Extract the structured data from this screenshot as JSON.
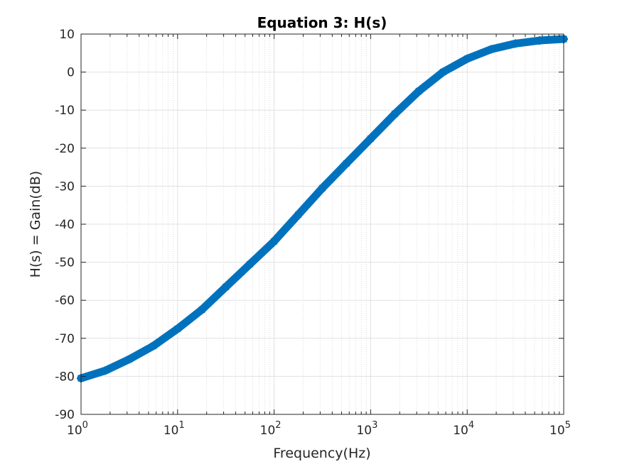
{
  "chart_data": {
    "type": "line",
    "title": "Equation 3: H(s)",
    "xlabel": "Frequency(Hz)",
    "ylabel": "H(s) = Gain(dB)",
    "xscale": "log",
    "xlim": [
      1,
      100000
    ],
    "ylim": [
      -90,
      10
    ],
    "grid": true,
    "minor_grid_x": true,
    "marker": "asterisk",
    "x_tick_labels": [
      {
        "base": "10",
        "exp": "0"
      },
      {
        "base": "10",
        "exp": "1"
      },
      {
        "base": "10",
        "exp": "2"
      },
      {
        "base": "10",
        "exp": "3"
      },
      {
        "base": "10",
        "exp": "4"
      },
      {
        "base": "10",
        "exp": "5"
      }
    ],
    "y_tick_labels": [
      "10",
      "0",
      "-10",
      "-20",
      "-30",
      "-40",
      "-50",
      "-60",
      "-70",
      "-80",
      "-90"
    ],
    "x_ticks": [
      1,
      10,
      100,
      1000,
      10000,
      100000
    ],
    "y_ticks": [
      10,
      0,
      -10,
      -20,
      -30,
      -40,
      -50,
      -60,
      -70,
      -80,
      -90
    ],
    "series": [
      {
        "color": "#0072BD",
        "x": [
          1,
          1.78,
          3.16,
          5.62,
          10,
          17.8,
          31.6,
          56.2,
          100,
          178,
          316,
          562,
          1000,
          1780,
          3160,
          5620,
          10000,
          17800,
          31600,
          56200,
          100000
        ],
        "y": [
          -80.5,
          -78.5,
          -75.5,
          -72,
          -67.5,
          -62.5,
          -56.5,
          -50.5,
          -44.5,
          -37.5,
          -30.5,
          -24,
          -17.5,
          -11,
          -5,
          0,
          3.5,
          6,
          7.5,
          8.3,
          8.7
        ]
      }
    ]
  }
}
